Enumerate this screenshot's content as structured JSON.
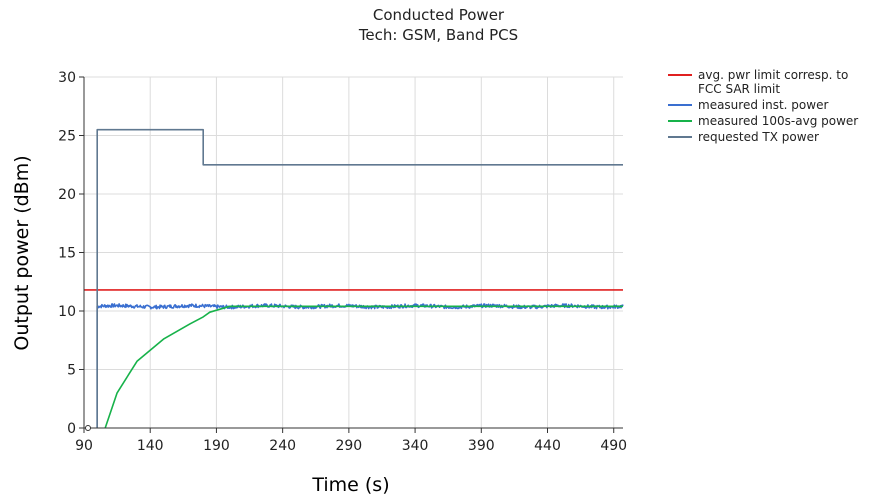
{
  "chart_data": {
    "type": "line",
    "title": "Conducted Power",
    "subtitle": "Tech: GSM, Band PCS",
    "xlabel": "Time (s)",
    "ylabel": "Output power (dBm)",
    "xlim": [
      90,
      497
    ],
    "ylim": [
      0,
      30
    ],
    "x_ticks": [
      "90",
      "140",
      "190",
      "240",
      "290",
      "340",
      "390",
      "440",
      "490"
    ],
    "y_ticks": [
      "0",
      "5",
      "10",
      "15",
      "20",
      "25",
      "30"
    ],
    "grid": true,
    "legend_position": "right",
    "series": [
      {
        "name": "avg. pwr limit corresp. to FCC SAR limit",
        "color": "#e02020",
        "x": [
          90,
          497
        ],
        "y": [
          11.8,
          11.8
        ]
      },
      {
        "name": "measured inst. power",
        "color": "#3a6fd0",
        "x": [
          100,
          100,
          497
        ],
        "y": [
          0,
          10.4,
          10.4
        ],
        "noise": 0.15
      },
      {
        "name": "measured 100s-avg power",
        "color": "#17b24a",
        "x": [
          106,
          115,
          130,
          150,
          170,
          180,
          185,
          200,
          497
        ],
        "y": [
          0,
          3.0,
          5.7,
          7.6,
          8.9,
          9.5,
          9.9,
          10.4,
          10.4
        ]
      },
      {
        "name": "requested TX power",
        "color": "#607890",
        "x": [
          100,
          100,
          180,
          180,
          497
        ],
        "y": [
          0,
          25.5,
          25.5,
          22.5,
          22.5
        ]
      }
    ]
  }
}
